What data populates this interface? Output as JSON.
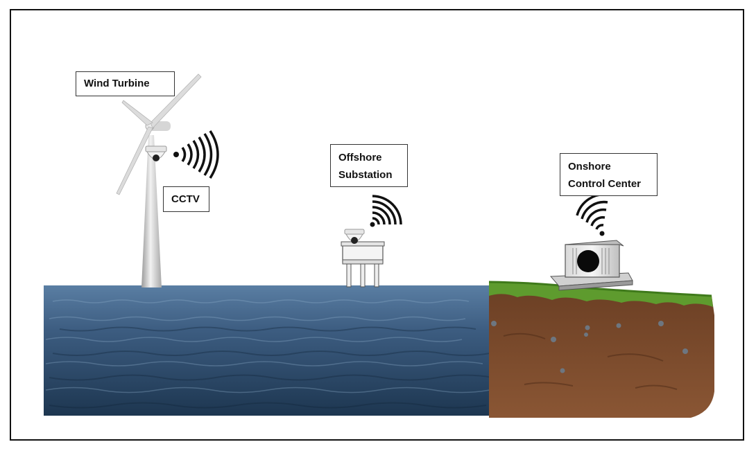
{
  "labels": {
    "wind_turbine": "Wind Turbine",
    "cctv": "CCTV",
    "offshore_substation": "Offshore\nSubstation",
    "onshore_control_center": "Onshore\nControl Center"
  },
  "colors": {
    "sea_top": "#3f5f84",
    "sea_bottom": "#1f3a55",
    "soil": "#7a4a2c",
    "grass": "#5e9b2e",
    "tower": "#c9c9c9",
    "signal": "#111111"
  },
  "icons": [
    "wind-turbine-icon",
    "cctv-camera-icon",
    "wifi-signal-icon",
    "offshore-platform-icon",
    "control-center-icon"
  ]
}
